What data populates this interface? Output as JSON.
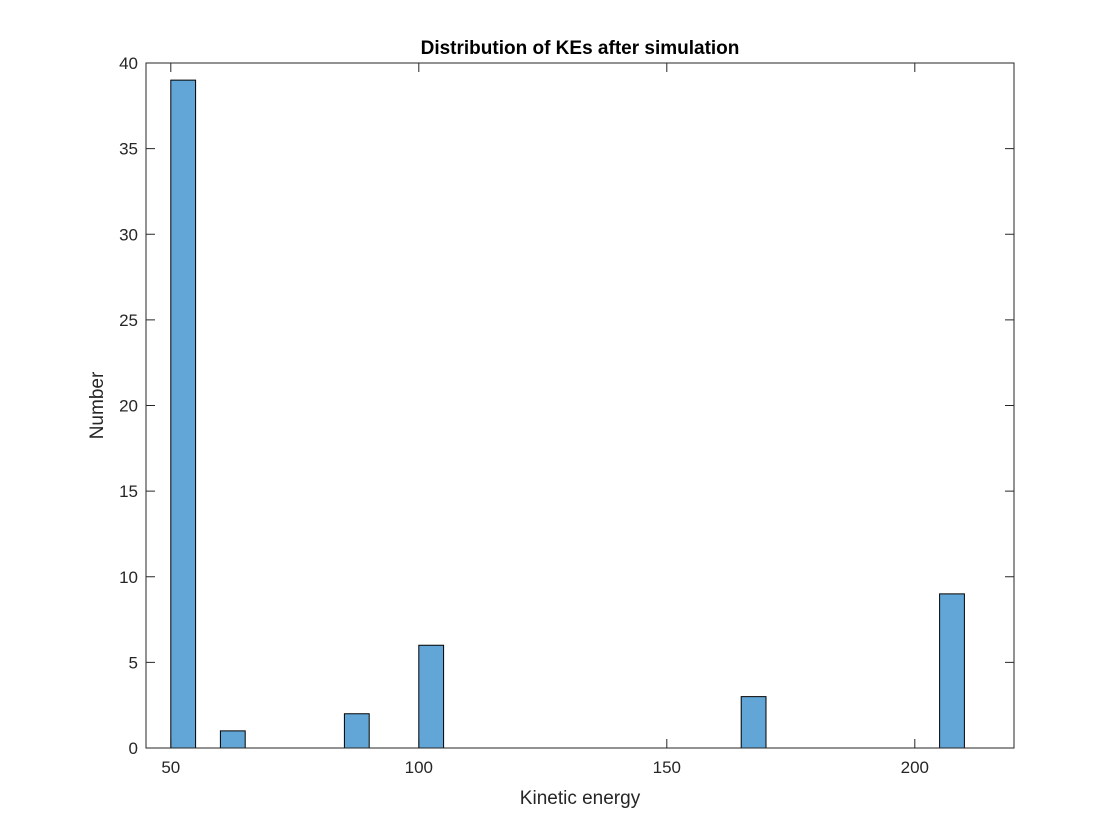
{
  "chart_data": {
    "type": "bar",
    "title": "Distribution of KEs after simulation",
    "xlabel": "Kinetic energy",
    "ylabel": "Number",
    "xlim": [
      45,
      220
    ],
    "ylim": [
      0,
      40
    ],
    "xticks": [
      50,
      100,
      150,
      200
    ],
    "yticks": [
      0,
      5,
      10,
      15,
      20,
      25,
      30,
      35,
      40
    ],
    "bin_width": 5,
    "bars": [
      {
        "x_start": 50,
        "x_end": 55,
        "value": 39
      },
      {
        "x_start": 60,
        "x_end": 65,
        "value": 1
      },
      {
        "x_start": 85,
        "x_end": 90,
        "value": 2
      },
      {
        "x_start": 100,
        "x_end": 105,
        "value": 6
      },
      {
        "x_start": 165,
        "x_end": 170,
        "value": 3
      },
      {
        "x_start": 205,
        "x_end": 210,
        "value": 9
      }
    ],
    "bar_color": "#62a6d7",
    "bar_edge_color": "#000000",
    "grid": false
  }
}
